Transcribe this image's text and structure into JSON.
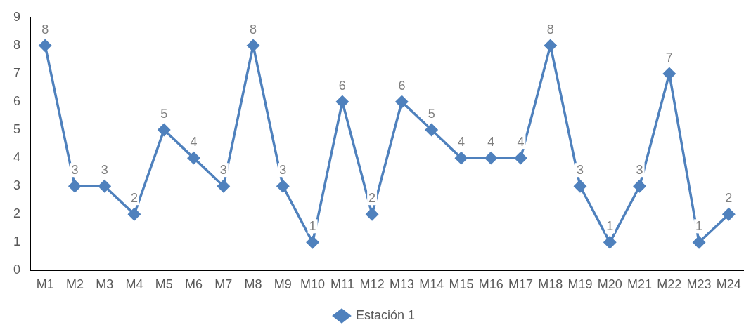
{
  "chart_data": {
    "type": "line",
    "categories": [
      "M1",
      "M2",
      "M3",
      "M4",
      "M5",
      "M6",
      "M7",
      "M8",
      "M9",
      "M10",
      "M11",
      "M12",
      "M13",
      "M14",
      "M15",
      "M16",
      "M17",
      "M18",
      "M19",
      "M20",
      "M21",
      "M22",
      "M23",
      "M24"
    ],
    "series": [
      {
        "name": "Estación 1",
        "color": "#4f81bd",
        "values": [
          8,
          3,
          3,
          2,
          5,
          4,
          3,
          8,
          3,
          1,
          6,
          2,
          6,
          5,
          4,
          4,
          4,
          8,
          3,
          1,
          3,
          7,
          1,
          2
        ]
      }
    ],
    "ylim": [
      0,
      9
    ],
    "yticks": [
      0,
      1,
      2,
      3,
      4,
      5,
      6,
      7,
      8,
      9
    ],
    "grid": false,
    "legend": "bottom",
    "marker": "diamond",
    "line_style": "solid",
    "data_labels": true
  }
}
